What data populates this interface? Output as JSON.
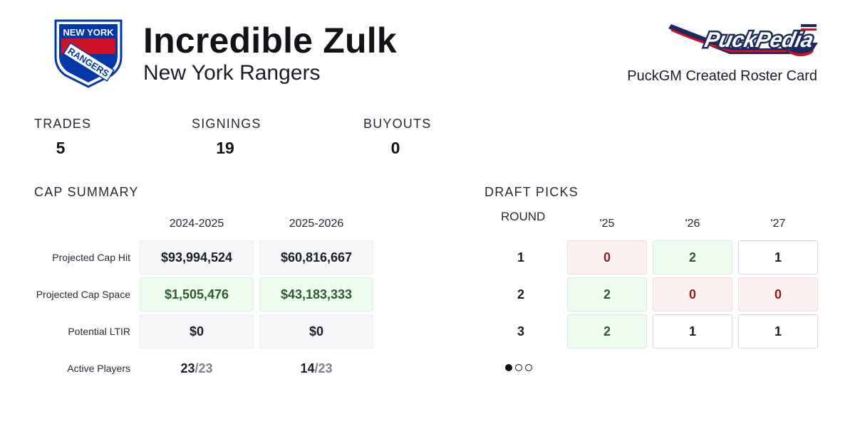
{
  "header": {
    "player_name": "Incredible Zulk",
    "team_name": "New York Rangers",
    "card_caption": "PuckGM Created Roster Card",
    "team_logo_text": {
      "line1": "NEW YORK",
      "line2": "RANGERS"
    },
    "brand_logo_text": "PuckPedia",
    "colors": {
      "rangers_blue": "#0038a8",
      "rangers_red": "#ce1126",
      "brand_navy": "#1b2a5c"
    }
  },
  "stats": [
    {
      "label": "TRADES",
      "value": "5"
    },
    {
      "label": "SIGNINGS",
      "value": "19"
    },
    {
      "label": "BUYOUTS",
      "value": "0"
    }
  ],
  "cap_summary": {
    "title": "CAP SUMMARY",
    "seasons": [
      "2024-2025",
      "2025-2026"
    ],
    "rows": [
      {
        "label": "Projected Cap Hit",
        "values": [
          "$93,994,524",
          "$60,816,667"
        ],
        "status": "neutral"
      },
      {
        "label": "Projected Cap Space",
        "values": [
          "$1,505,476",
          "$43,183,333"
        ],
        "status": "good"
      },
      {
        "label": "Potential LTIR",
        "values": [
          "$0",
          "$0"
        ],
        "status": "neutral"
      }
    ],
    "active_players": {
      "label": "Active Players",
      "values": [
        {
          "count": "23",
          "max": "/23"
        },
        {
          "count": "14",
          "max": "/23"
        }
      ]
    }
  },
  "draft_picks": {
    "title": "DRAFT PICKS",
    "round_header": "ROUND",
    "years": [
      "'25",
      "'26",
      "'27"
    ],
    "rounds": [
      {
        "round": "1",
        "picks": [
          {
            "value": "0",
            "status": "bad"
          },
          {
            "value": "2",
            "status": "good"
          },
          {
            "value": "1",
            "status": "plain"
          }
        ]
      },
      {
        "round": "2",
        "picks": [
          {
            "value": "2",
            "status": "good"
          },
          {
            "value": "0",
            "status": "bad"
          },
          {
            "value": "0",
            "status": "bad"
          }
        ]
      },
      {
        "round": "3",
        "picks": [
          {
            "value": "2",
            "status": "good"
          },
          {
            "value": "1",
            "status": "plain"
          },
          {
            "value": "1",
            "status": "plain"
          }
        ]
      }
    ],
    "pagination": {
      "pages": 3,
      "current": 1
    }
  }
}
